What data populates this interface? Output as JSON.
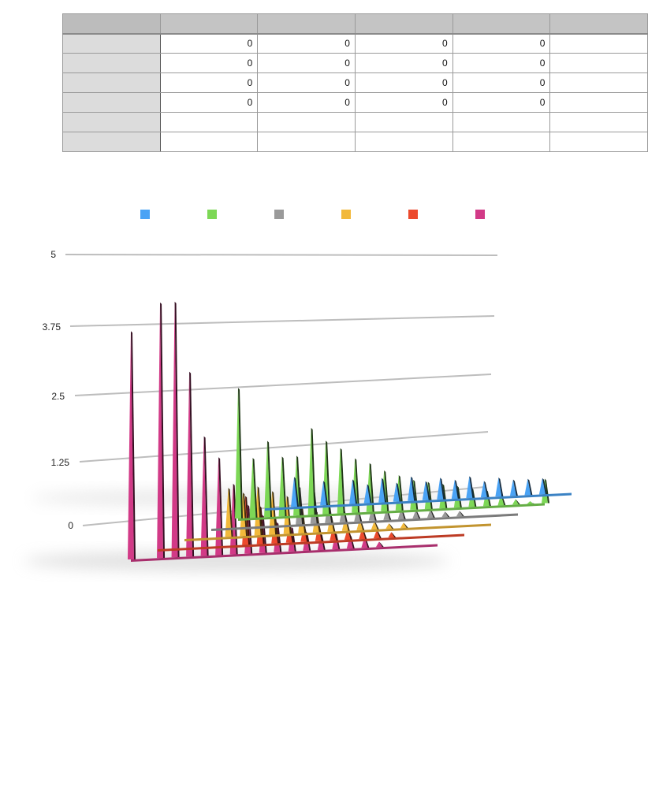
{
  "table": {
    "header": [
      "",
      "",
      "",
      "",
      "",
      ""
    ],
    "rows": [
      {
        "label": "",
        "cells": [
          "0",
          "0",
          "0",
          "0",
          ""
        ]
      },
      {
        "label": "",
        "cells": [
          "0",
          "0",
          "0",
          "0",
          ""
        ]
      },
      {
        "label": "",
        "cells": [
          "0",
          "0",
          "0",
          "0",
          ""
        ]
      },
      {
        "label": "",
        "cells": [
          "0",
          "0",
          "0",
          "0",
          ""
        ]
      },
      {
        "label": "",
        "cells": [
          "",
          "",
          "",
          "",
          ""
        ]
      },
      {
        "label": "",
        "cells": [
          "",
          "",
          "",
          "",
          ""
        ]
      }
    ]
  },
  "chart_data": {
    "type": "area",
    "subtype": "3d-spiky-area",
    "title": "",
    "xlabel": "",
    "ylabel": "",
    "ylim": [
      0,
      5
    ],
    "yticks": [
      "0",
      "1.25",
      "2.5",
      "3.75",
      "5"
    ],
    "grid": true,
    "legend_position": "top",
    "series": [
      {
        "color": "#4aa3f5",
        "values": [
          0,
          0,
          0.55,
          0,
          0.45,
          0,
          0.45,
          0.35,
          0.45,
          0.35,
          0.45,
          0.35,
          0.4,
          0.35,
          0.4,
          0.3,
          0.35,
          0.3,
          0.3,
          0.3,
          0,
          0
        ]
      },
      {
        "color": "#7dd856",
        "values": [
          2.4,
          1.1,
          1.4,
          1.1,
          1.1,
          1.6,
          1.35,
          1.2,
          1.0,
          0.9,
          0.75,
          0.65,
          0.55,
          0.5,
          0.45,
          0.4,
          0.35,
          0.3,
          0.2,
          0.1,
          0.05,
          0.45
        ]
      },
      {
        "color": "#9a9a9a",
        "values": [
          0,
          0,
          0,
          0,
          0,
          0,
          0.7,
          0.6,
          0.4,
          0.3,
          0.25,
          0.25,
          0.2,
          0.2,
          0.15,
          0.15,
          0.1,
          0.1,
          0,
          0,
          0,
          0
        ]
      },
      {
        "color": "#f2b93b",
        "values": [
          0,
          0,
          0,
          0.9,
          0.8,
          0.9,
          0.8,
          0.7,
          0.5,
          0.4,
          0.3,
          0.25,
          0.2,
          0.15,
          0.1,
          0.1,
          0,
          0,
          0,
          0,
          0,
          0
        ]
      },
      {
        "color": "#ec4a2d",
        "values": [
          0,
          0,
          0,
          0,
          0,
          0,
          0.9,
          0.7,
          0.5,
          0.35,
          0.3,
          0.3,
          0.25,
          0.2,
          0.2,
          0.15,
          0.1,
          0,
          0,
          0,
          0,
          0
        ]
      },
      {
        "color": "#d23a87",
        "values": [
          4.2,
          0,
          4.7,
          4.7,
          3.4,
          2.2,
          1.8,
          1.3,
          0.9,
          0.7,
          0.55,
          0.45,
          0.35,
          0.3,
          0.3,
          0.25,
          0.2,
          0.1,
          0,
          0,
          0,
          0
        ]
      }
    ]
  }
}
